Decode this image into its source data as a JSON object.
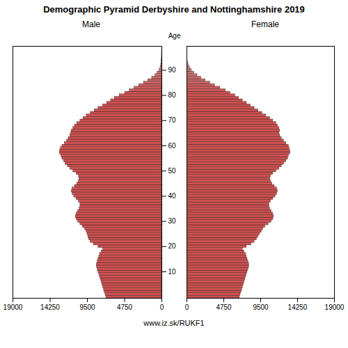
{
  "chart_data": {
    "type": "bar",
    "orientation": "horizontal",
    "title": "Demographic Pyramid Derbyshire and Nottinghamshire 2019",
    "caption": "www.iz.sk/RUKF1",
    "ylabel": "Age",
    "categories": [
      0,
      1,
      2,
      3,
      4,
      5,
      6,
      7,
      8,
      9,
      10,
      11,
      12,
      13,
      14,
      15,
      16,
      17,
      18,
      19,
      20,
      21,
      22,
      23,
      24,
      25,
      26,
      27,
      28,
      29,
      30,
      31,
      32,
      33,
      34,
      35,
      36,
      37,
      38,
      39,
      40,
      41,
      42,
      43,
      44,
      45,
      46,
      47,
      48,
      49,
      50,
      51,
      52,
      53,
      54,
      55,
      56,
      57,
      58,
      59,
      60,
      61,
      62,
      63,
      64,
      65,
      66,
      67,
      68,
      69,
      70,
      71,
      72,
      73,
      74,
      75,
      76,
      77,
      78,
      79,
      80,
      81,
      82,
      83,
      84,
      85,
      86,
      87,
      88,
      89,
      90,
      91,
      92,
      93,
      94,
      95,
      96,
      97,
      98,
      99
    ],
    "ylim": [
      -0.5,
      99.5
    ],
    "yticks": [
      10,
      20,
      30,
      40,
      50,
      60,
      70,
      80,
      90
    ],
    "xlim": [
      0,
      19000
    ],
    "xticks": [
      0,
      4750,
      9500,
      14250,
      19000
    ],
    "series": [
      {
        "name": "Male",
        "values": [
          7100,
          7200,
          7300,
          7400,
          7500,
          7600,
          7700,
          7800,
          7900,
          8000,
          8100,
          8200,
          8300,
          8300,
          8200,
          8100,
          8000,
          7900,
          7700,
          7500,
          8100,
          8700,
          9100,
          9300,
          9400,
          9500,
          9600,
          9800,
          10100,
          10400,
          10700,
          10900,
          11000,
          10900,
          10700,
          10500,
          10400,
          10400,
          10600,
          10900,
          11200,
          11400,
          11500,
          11400,
          11100,
          10800,
          10600,
          10500,
          10600,
          10900,
          11300,
          11700,
          12000,
          12300,
          12500,
          12700,
          12800,
          13000,
          13000,
          12900,
          12700,
          12400,
          12100,
          11900,
          11700,
          11600,
          11500,
          11300,
          11100,
          10800,
          10400,
          10000,
          9600,
          9100,
          8600,
          8100,
          7500,
          7000,
          6500,
          6000,
          5400,
          4700,
          4100,
          3500,
          2900,
          2300,
          1750,
          1250,
          850,
          560,
          320,
          185,
          100,
          55,
          27,
          13,
          6,
          2,
          1,
          0
        ],
        "colors": [
          "#cd5050",
          "#cd5050",
          "#cd5050",
          "#cd5050",
          "#cd5050",
          "#cd5050",
          "#cd5050",
          "#cd5050",
          "#cd5050",
          "#cd5050",
          "#cd5050",
          "#cd5050",
          "#cd5050",
          "#cd5050",
          "#cd5050",
          "#cd5050",
          "#cd5050",
          "#cd5050",
          "#cd5050",
          "#cd5050",
          "#cd5050",
          "#cd5050",
          "#cd5050",
          "#cd5050",
          "#cd5050",
          "#cd5050",
          "#cd5050",
          "#cd5050",
          "#cd5050",
          "#cd5050",
          "#cd5050",
          "#cd5050",
          "#cd5050",
          "#cd5050",
          "#cd5050",
          "#cd5050",
          "#cd5050",
          "#cd5050",
          "#cd5050",
          "#cd5050",
          "#cd5050",
          "#cd5050",
          "#cd5050",
          "#cd5050",
          "#cd5050",
          "#cd5050",
          "#cd5050",
          "#cd5050",
          "#cd5050",
          "#cd5050",
          "#cd5050",
          "#cd5050",
          "#cd5050",
          "#cd5050",
          "#cd5050",
          "#cd5050",
          "#cd5050",
          "#cd5050",
          "#cd5050",
          "#cd5050",
          "#cd5050",
          "#cd5050",
          "#cd5050",
          "#cd5050",
          "#cd5050",
          "#cd5050",
          "#cd5050",
          "#cd5050",
          "#cd5050",
          "#cd5050",
          "#cd5050",
          "#cd5050",
          "#cd5050",
          "#cd5050",
          "#cd5050",
          "#cd5050",
          "#cd5050",
          "#cd5050",
          "#cd5050",
          "#cd5050",
          "#cd5050",
          "#cc5454",
          "#cb5857",
          "#ca5c5b",
          "#c9605e",
          "#c86462",
          "#c76866",
          "#c66c69",
          "#c5706d",
          "#c47470",
          "#c37874",
          "#c17c78",
          "#c0807b",
          "#bf847f",
          "#be8882",
          "#bd8c86",
          "#bc908a",
          "#bb948d",
          "#ba9891",
          "#b99c94"
        ]
      },
      {
        "name": "Female",
        "values": [
          6800,
          6900,
          7000,
          7100,
          7200,
          7300,
          7400,
          7500,
          7600,
          7700,
          7800,
          7900,
          8000,
          8000,
          7900,
          7800,
          7700,
          7600,
          7400,
          7200,
          7700,
          8300,
          8700,
          9000,
          9200,
          9400,
          9600,
          9800,
          10100,
          10500,
          10900,
          11100,
          11200,
          11100,
          10900,
          10700,
          10600,
          10600,
          10800,
          11100,
          11400,
          11600,
          11700,
          11600,
          11300,
          11000,
          10800,
          10700,
          10800,
          11100,
          11500,
          11900,
          12200,
          12500,
          12800,
          13000,
          13100,
          13300,
          13300,
          13200,
          13100,
          12800,
          12500,
          12200,
          12000,
          11900,
          12000,
          11900,
          11700,
          11500,
          11100,
          10700,
          10200,
          9700,
          9200,
          8700,
          8200,
          7700,
          7200,
          6700,
          6200,
          5600,
          5000,
          4300,
          3600,
          3000,
          2400,
          1850,
          1350,
          950,
          620,
          400,
          245,
          140,
          75,
          38,
          17,
          7,
          2,
          1
        ],
        "colors": [
          "#cd5050",
          "#cd5050",
          "#cd5050",
          "#cd5050",
          "#cd5050",
          "#cd5050",
          "#cd5050",
          "#cd5050",
          "#cd5050",
          "#cd5050",
          "#cd5050",
          "#cd5050",
          "#cd5050",
          "#cd5050",
          "#cd5050",
          "#cd5050",
          "#cd5050",
          "#cd5050",
          "#cd5050",
          "#cd5050",
          "#cd5050",
          "#cd5050",
          "#cd5050",
          "#cd5050",
          "#cd5050",
          "#cd5050",
          "#cd5050",
          "#cd5050",
          "#cd5050",
          "#cd5050",
          "#cd5050",
          "#cd5050",
          "#cd5050",
          "#cd5050",
          "#cd5050",
          "#cd5050",
          "#cd5050",
          "#cd5050",
          "#cd5050",
          "#cd5050",
          "#cd5050",
          "#cd5050",
          "#cd5050",
          "#cd5050",
          "#cd5050",
          "#cd5050",
          "#cd5050",
          "#cd5050",
          "#cd5050",
          "#cd5050",
          "#cd5050",
          "#cd5050",
          "#cd5050",
          "#cd5050",
          "#cd5050",
          "#cd5050",
          "#cd5050",
          "#cd5050",
          "#cd5050",
          "#cd5050",
          "#cd5050",
          "#cd5050",
          "#cd5050",
          "#cd5050",
          "#cd5050",
          "#cd5050",
          "#cd5050",
          "#cd5050",
          "#cd5050",
          "#cd5050",
          "#cd5050",
          "#cd5050",
          "#cd5050",
          "#cd5050",
          "#cd5050",
          "#cd5050",
          "#cd5050",
          "#cd5050",
          "#cd5050",
          "#cd5050",
          "#cd5050",
          "#cc5454",
          "#cb5857",
          "#ca5c5b",
          "#c9605e",
          "#c86462",
          "#c76866",
          "#c66c69",
          "#c5706d",
          "#c47470",
          "#c37874",
          "#c17c78",
          "#c0807b",
          "#bf847f",
          "#be8882",
          "#bd8c86",
          "#bc908a",
          "#bb948d",
          "#ba9891",
          "#b99c94"
        ]
      }
    ]
  }
}
